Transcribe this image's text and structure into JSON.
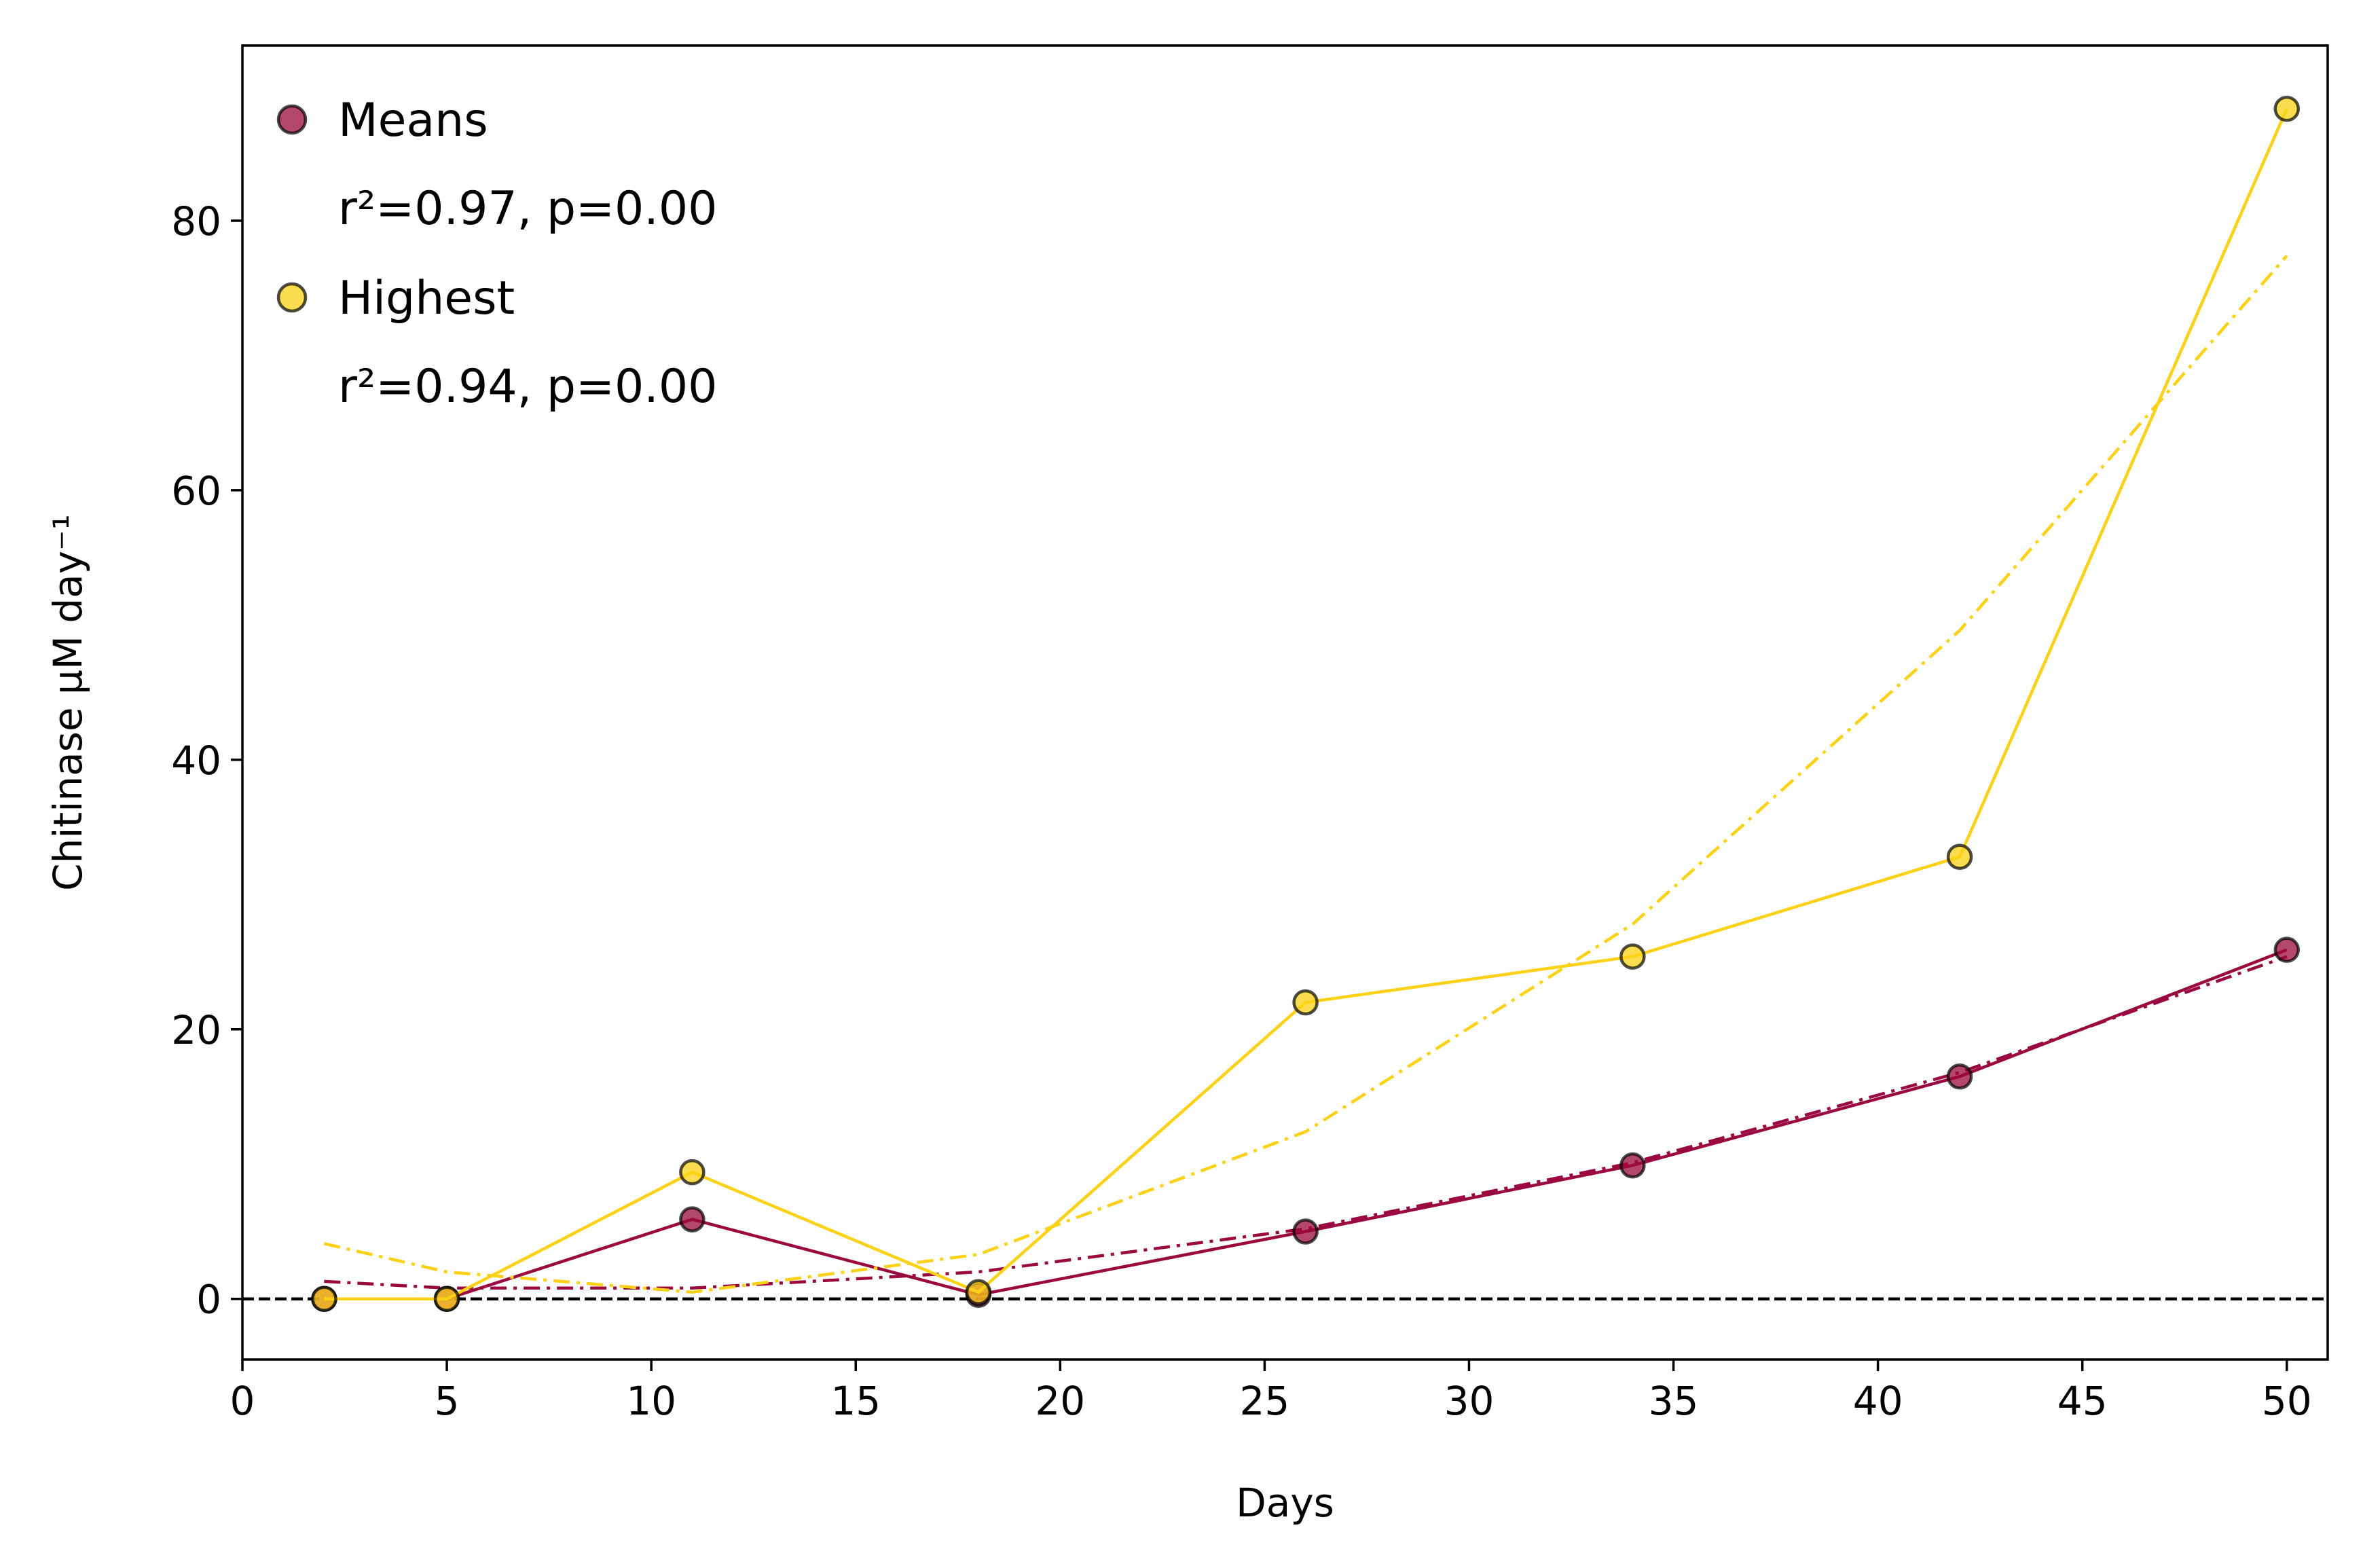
{
  "chart_data": {
    "type": "line",
    "xlabel": "Days",
    "ylabel": "Chitinase μM day⁻¹",
    "xlim": [
      0,
      51
    ],
    "ylim": [
      -4.5,
      93
    ],
    "xticks": [
      0,
      5,
      10,
      15,
      20,
      25,
      30,
      35,
      40,
      45,
      50
    ],
    "yticks": [
      0,
      20,
      40,
      60,
      80
    ],
    "grid": false,
    "legend_position": "top-left",
    "reference_line": {
      "y": 0,
      "style": "dashed",
      "color": "#000000"
    },
    "series": [
      {
        "name": "Means",
        "color": "#9b0a3e",
        "x": [
          2,
          5,
          11,
          18,
          26,
          34,
          42,
          50
        ],
        "y": [
          0.0,
          0.0,
          5.9,
          0.3,
          5.0,
          9.9,
          16.5,
          25.9
        ],
        "fit": {
          "stat": "r²=0.97, p=0.00",
          "y": [
            1.3,
            0.8,
            0.8,
            2.0,
            5.2,
            10.1,
            16.8,
            25.4
          ]
        }
      },
      {
        "name": "Highest",
        "color": "#fcd116",
        "x": [
          2,
          5,
          11,
          18,
          26,
          34,
          42,
          50
        ],
        "y": [
          0.0,
          0.0,
          9.4,
          0.5,
          22.0,
          25.4,
          32.8,
          88.3
        ],
        "fit": {
          "stat": "r²=0.94, p=0.00",
          "y": [
            4.1,
            2.0,
            0.5,
            3.3,
            12.4,
            27.8,
            49.6,
            77.4
          ]
        }
      }
    ]
  }
}
